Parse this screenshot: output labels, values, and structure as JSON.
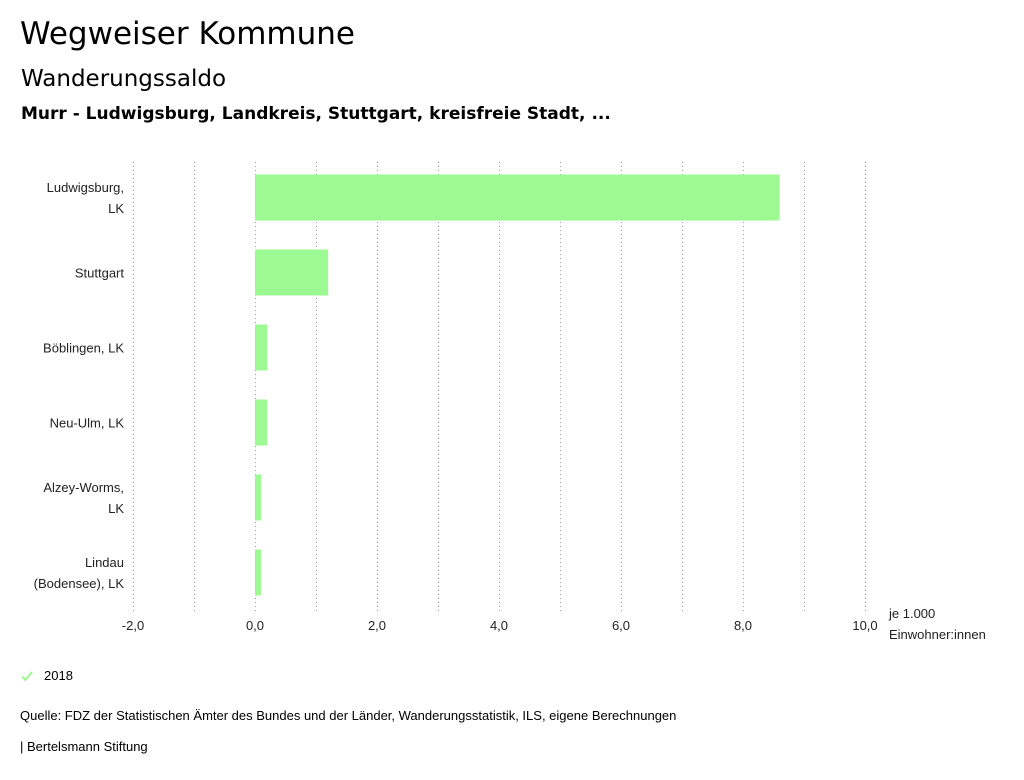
{
  "header": {
    "title": "Wegweiser Kommune",
    "subtitle": "Wanderungssaldo",
    "region": "Murr - Ludwigsburg, Landkreis, Stuttgart, kreisfreie Stadt, ..."
  },
  "chart_data": {
    "type": "bar",
    "orientation": "horizontal",
    "categories": [
      [
        "Ludwigsburg,",
        "LK"
      ],
      [
        "Stuttgart"
      ],
      [
        "Böblingen, LK"
      ],
      [
        "Neu-Ulm, LK"
      ],
      [
        "Alzey-Worms,",
        "LK"
      ],
      [
        "Lindau",
        "(Bodensee), LK"
      ]
    ],
    "series": [
      {
        "name": "2018",
        "color": "#9dfa93",
        "values": [
          8.6,
          1.2,
          0.2,
          0.2,
          0.1,
          0.1
        ]
      }
    ],
    "xlim": [
      -2.0,
      10.0
    ],
    "tick_values": [
      -2,
      0,
      2,
      4,
      6,
      8,
      10
    ],
    "tick_labels": [
      "-2,0",
      "0,0",
      "2,0",
      "4,0",
      "6,0",
      "8,0",
      "10,0"
    ],
    "unit_label": [
      "je 1.000",
      "Einwohner:innen"
    ],
    "grid": "vertical-dotted",
    "legend_position": "bottom-left"
  },
  "legend": {
    "label": "2018",
    "check_color": "#9dfa93"
  },
  "footer": {
    "source": "Quelle: FDZ der Statistischen Ämter des Bundes und der Länder, Wanderungsstatistik, ILS, eigene Berechnungen",
    "credit": "| Bertelsmann Stiftung"
  }
}
